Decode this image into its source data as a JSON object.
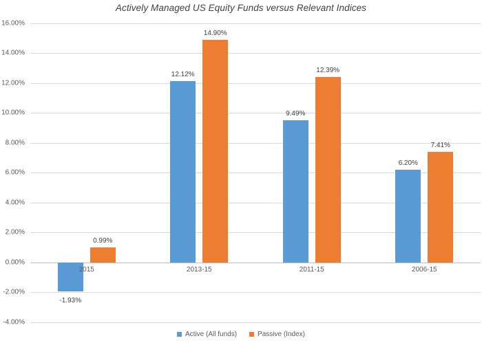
{
  "chart_data": {
    "type": "bar",
    "title": "Actively Managed US Equity Funds versus Relevant Indices",
    "categories": [
      "2015",
      "2013-15",
      "2011-15",
      "2006-15"
    ],
    "series": [
      {
        "key": "active",
        "name": "Active (All funds)",
        "color": "#5B9BD5",
        "values": [
          -1.93,
          12.12,
          9.49,
          6.2
        ],
        "data_labels": [
          "-1.93%",
          "12.12%",
          "9.49%",
          "6.20%"
        ]
      },
      {
        "key": "passive",
        "name": "Passive (Index)",
        "color": "#ED7D31",
        "values": [
          0.99,
          14.9,
          12.39,
          7.41
        ],
        "data_labels": [
          "0.99%",
          "14.90%",
          "12.39%",
          "7.41%"
        ]
      }
    ],
    "y_axis": {
      "min": -4,
      "max": 16,
      "step": 2,
      "tick_labels": [
        "16.00%",
        "14.00%",
        "12.00%",
        "10.00%",
        "8.00%",
        "6.00%",
        "4.00%",
        "2.00%",
        "0.00%",
        "-2.00%",
        "-4.00%"
      ]
    },
    "xlabel": "",
    "ylabel": "",
    "grid": true,
    "legend": {
      "position": "bottom",
      "entries": [
        "Active (All funds)",
        "Passive (Index)"
      ]
    },
    "colors": {
      "grid": "#D9D9D9",
      "axis_line": "#BFBFBF",
      "tick_text": "#595959",
      "label_text": "#404040"
    }
  }
}
